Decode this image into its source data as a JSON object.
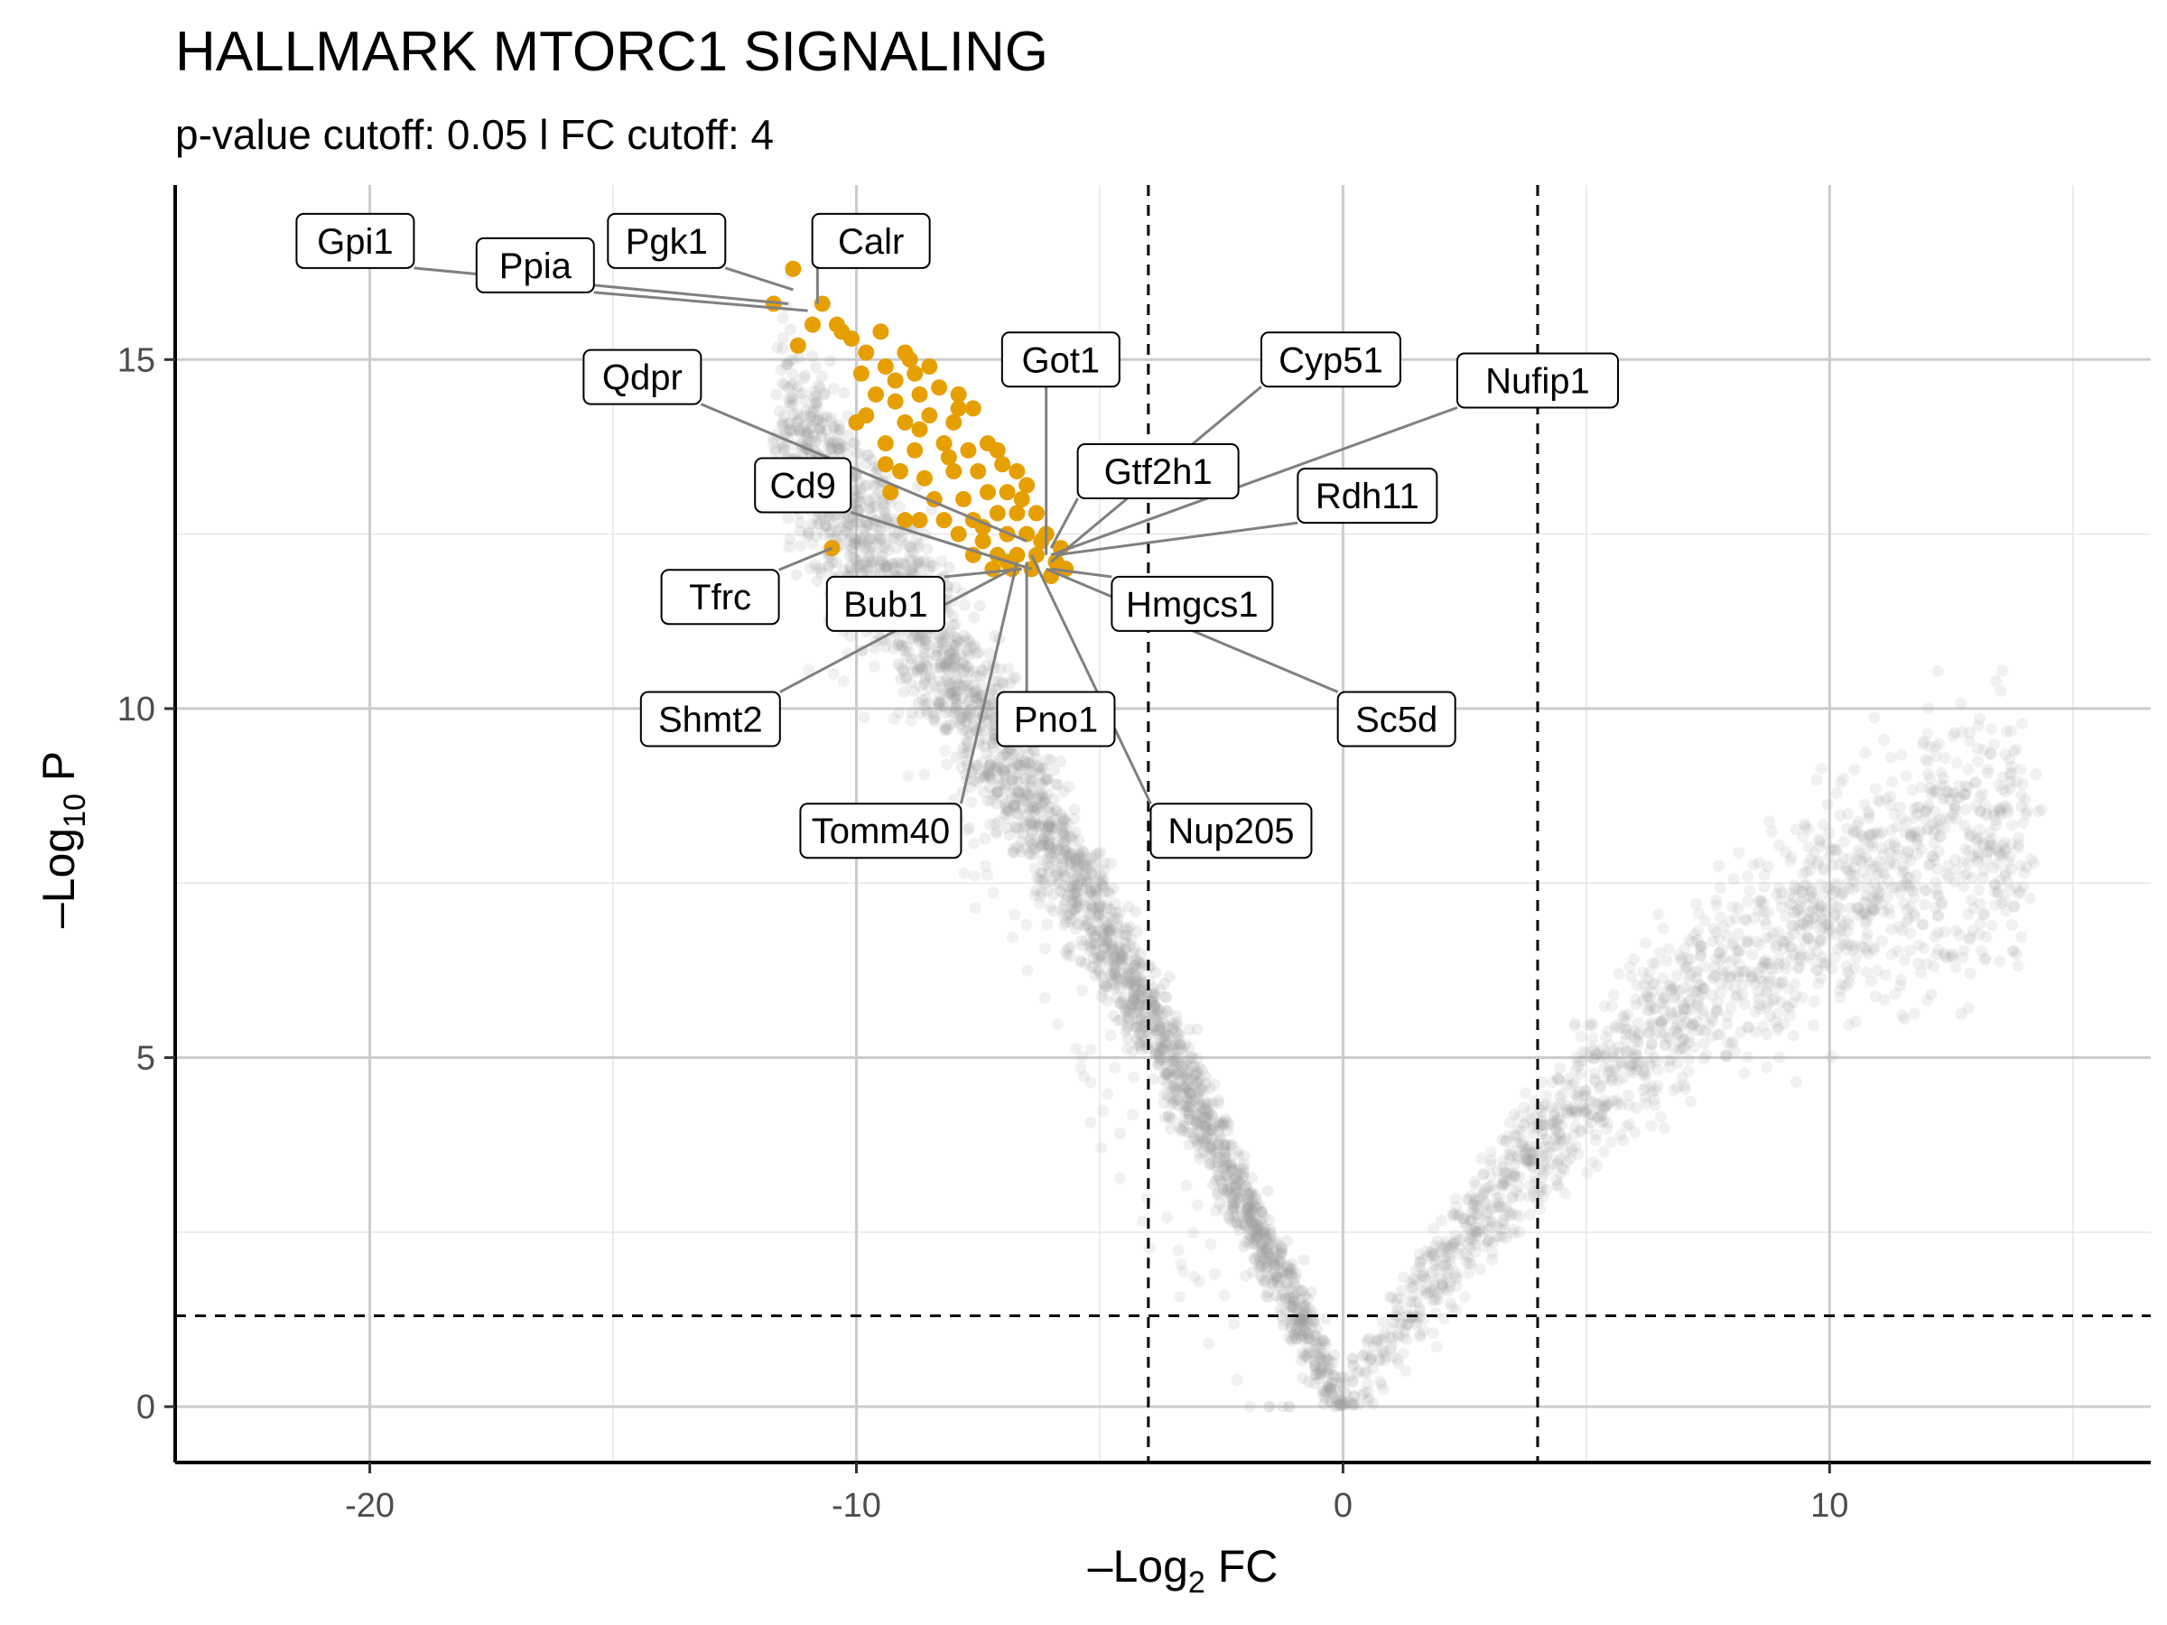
{
  "chart_data": {
    "type": "scatter",
    "title": "HALLMARK MTORC1 SIGNALING",
    "subtitle": "p-value cutoff: 0.05 l FC cutoff: 4",
    "xlabel_main": "–Log",
    "xlabel_sub": "2",
    "xlabel_tail": " FC",
    "ylabel_main": "–Log",
    "ylabel_sub": "10",
    "ylabel_tail": " P",
    "xlim": [
      -24,
      16.6
    ],
    "ylim": [
      -0.8,
      17.5
    ],
    "x_ticks": [
      -20,
      -10,
      0,
      10
    ],
    "x_tick_labels": [
      "-20",
      "-10",
      "0",
      "10"
    ],
    "y_ticks": [
      0,
      5,
      10,
      15
    ],
    "y_tick_labels": [
      "0",
      "5",
      "10",
      "15"
    ],
    "grid": true,
    "legend": "none",
    "fc_cutoff": 4,
    "p_cutoff": 0.05,
    "colors": {
      "background_points": "#9e9e9e",
      "highlight_points": "#E69F00"
    },
    "background_distribution": {
      "description_of_shape": "volcano",
      "left_arm": {
        "x_range": [
          -11.5,
          0
        ],
        "y_at_x_min": 16.0
      },
      "right_arm": {
        "x_range": [
          0,
          14
        ],
        "y_at_x_max": 8.2
      }
    },
    "highlighted_points": [
      {
        "x": -11.3,
        "y": 16.3
      },
      {
        "x": -11.7,
        "y": 15.8
      },
      {
        "x": -10.7,
        "y": 15.8
      },
      {
        "x": -10.9,
        "y": 15.5
      },
      {
        "x": -10.4,
        "y": 15.5
      },
      {
        "x": -11.2,
        "y": 15.2
      },
      {
        "x": -10.1,
        "y": 15.3
      },
      {
        "x": -9.8,
        "y": 15.1
      },
      {
        "x": -9.5,
        "y": 15.4
      },
      {
        "x": -9.9,
        "y": 14.8
      },
      {
        "x": -9.4,
        "y": 14.9
      },
      {
        "x": -9.0,
        "y": 15.1
      },
      {
        "x": -8.8,
        "y": 14.8
      },
      {
        "x": -9.6,
        "y": 14.5
      },
      {
        "x": -9.2,
        "y": 14.4
      },
      {
        "x": -8.7,
        "y": 14.5
      },
      {
        "x": -8.3,
        "y": 14.6
      },
      {
        "x": -7.9,
        "y": 14.5
      },
      {
        "x": -9.8,
        "y": 14.2
      },
      {
        "x": -9.0,
        "y": 14.1
      },
      {
        "x": -8.5,
        "y": 14.2
      },
      {
        "x": -8.0,
        "y": 14.1
      },
      {
        "x": -7.6,
        "y": 14.3
      },
      {
        "x": -9.4,
        "y": 13.8
      },
      {
        "x": -8.8,
        "y": 13.7
      },
      {
        "x": -8.2,
        "y": 13.8
      },
      {
        "x": -7.7,
        "y": 13.7
      },
      {
        "x": -7.3,
        "y": 13.8
      },
      {
        "x": -9.1,
        "y": 13.4
      },
      {
        "x": -8.6,
        "y": 13.3
      },
      {
        "x": -8.0,
        "y": 13.4
      },
      {
        "x": -7.5,
        "y": 13.4
      },
      {
        "x": -7.0,
        "y": 13.5
      },
      {
        "x": -6.7,
        "y": 13.4
      },
      {
        "x": -9.3,
        "y": 13.1
      },
      {
        "x": -8.4,
        "y": 13.0
      },
      {
        "x": -7.8,
        "y": 13.0
      },
      {
        "x": -7.3,
        "y": 13.1
      },
      {
        "x": -6.9,
        "y": 13.1
      },
      {
        "x": -6.5,
        "y": 13.2
      },
      {
        "x": -9.0,
        "y": 12.7
      },
      {
        "x": -8.2,
        "y": 12.7
      },
      {
        "x": -7.6,
        "y": 12.7
      },
      {
        "x": -7.1,
        "y": 12.8
      },
      {
        "x": -6.7,
        "y": 12.8
      },
      {
        "x": -6.3,
        "y": 12.8
      },
      {
        "x": -8.7,
        "y": 12.7
      },
      {
        "x": -7.9,
        "y": 12.5
      },
      {
        "x": -7.4,
        "y": 12.4
      },
      {
        "x": -6.9,
        "y": 12.5
      },
      {
        "x": -6.5,
        "y": 12.5
      },
      {
        "x": -6.1,
        "y": 12.5
      },
      {
        "x": -7.6,
        "y": 12.2
      },
      {
        "x": -7.1,
        "y": 12.2
      },
      {
        "x": -6.7,
        "y": 12.2
      },
      {
        "x": -6.3,
        "y": 12.2
      },
      {
        "x": -5.9,
        "y": 12.1
      },
      {
        "x": -7.2,
        "y": 12.0
      },
      {
        "x": -6.8,
        "y": 12.0
      },
      {
        "x": -6.4,
        "y": 12.0
      },
      {
        "x": -6.0,
        "y": 11.9
      },
      {
        "x": -5.7,
        "y": 12.0
      },
      {
        "x": -10.5,
        "y": 12.3
      },
      {
        "x": -10.0,
        "y": 14.1
      },
      {
        "x": -9.4,
        "y": 13.5
      },
      {
        "x": -8.5,
        "y": 14.9
      },
      {
        "x": -8.9,
        "y": 15.0
      },
      {
        "x": -7.9,
        "y": 14.3
      },
      {
        "x": -7.1,
        "y": 13.7
      },
      {
        "x": -6.6,
        "y": 13.0
      },
      {
        "x": -6.9,
        "y": 12.1
      },
      {
        "x": -7.4,
        "y": 12.6
      },
      {
        "x": -8.1,
        "y": 13.6
      },
      {
        "x": -8.7,
        "y": 14.0
      },
      {
        "x": -9.2,
        "y": 14.7
      },
      {
        "x": -10.3,
        "y": 15.4
      },
      {
        "x": -6.2,
        "y": 12.4
      },
      {
        "x": -5.8,
        "y": 12.3
      }
    ],
    "labels": [
      {
        "gene": "Gpi1",
        "anchor_x": -11.4,
        "anchor_y": 15.8,
        "label_x": -20.3,
        "label_y": 16.7
      },
      {
        "gene": "Ppia",
        "anchor_x": -11.0,
        "anchor_y": 15.7,
        "label_x": -16.6,
        "label_y": 16.35
      },
      {
        "gene": "Pgk1",
        "anchor_x": -11.3,
        "anchor_y": 16.0,
        "label_x": -13.9,
        "label_y": 16.7
      },
      {
        "gene": "Calr",
        "anchor_x": -10.8,
        "anchor_y": 15.8,
        "label_x": -9.7,
        "label_y": 16.7
      },
      {
        "gene": "Got1",
        "anchor_x": -6.1,
        "anchor_y": 12.2,
        "label_x": -5.8,
        "label_y": 15.0
      },
      {
        "gene": "Cyp51",
        "anchor_x": -6.0,
        "anchor_y": 12.1,
        "label_x": -0.25,
        "label_y": 15.0
      },
      {
        "gene": "Nufip1",
        "anchor_x": -6.0,
        "anchor_y": 12.2,
        "label_x": 4.0,
        "label_y": 14.7
      },
      {
        "gene": "Qdpr",
        "anchor_x": -6.5,
        "anchor_y": 12.4,
        "label_x": -14.4,
        "label_y": 14.75
      },
      {
        "gene": "Gtf2h1",
        "anchor_x": -6.0,
        "anchor_y": 12.3,
        "label_x": -3.8,
        "label_y": 13.4
      },
      {
        "gene": "Rdh11",
        "anchor_x": -5.9,
        "anchor_y": 12.2,
        "label_x": 0.5,
        "label_y": 13.05
      },
      {
        "gene": "Cd9",
        "anchor_x": -6.4,
        "anchor_y": 12.0,
        "label_x": -11.1,
        "label_y": 13.2
      },
      {
        "gene": "Tfrc",
        "anchor_x": -10.5,
        "anchor_y": 12.3,
        "label_x": -12.8,
        "label_y": 11.6
      },
      {
        "gene": "Bub1",
        "anchor_x": -6.6,
        "anchor_y": 12.0,
        "label_x": -9.4,
        "label_y": 11.5
      },
      {
        "gene": "Hmgcs1",
        "anchor_x": -6.0,
        "anchor_y": 12.0,
        "label_x": -3.1,
        "label_y": 11.5
      },
      {
        "gene": "Shmt2",
        "anchor_x": -6.8,
        "anchor_y": 12.0,
        "label_x": -13.0,
        "label_y": 9.85
      },
      {
        "gene": "Pno1",
        "anchor_x": -6.5,
        "anchor_y": 12.1,
        "label_x": -5.9,
        "label_y": 9.85
      },
      {
        "gene": "Sc5d",
        "anchor_x": -6.1,
        "anchor_y": 12.0,
        "label_x": 1.1,
        "label_y": 9.85
      },
      {
        "gene": "Tomm40",
        "anchor_x": -6.7,
        "anchor_y": 12.1,
        "label_x": -9.5,
        "label_y": 8.25
      },
      {
        "gene": "Nup205",
        "anchor_x": -6.4,
        "anchor_y": 12.2,
        "label_x": -2.3,
        "label_y": 8.25
      }
    ]
  }
}
